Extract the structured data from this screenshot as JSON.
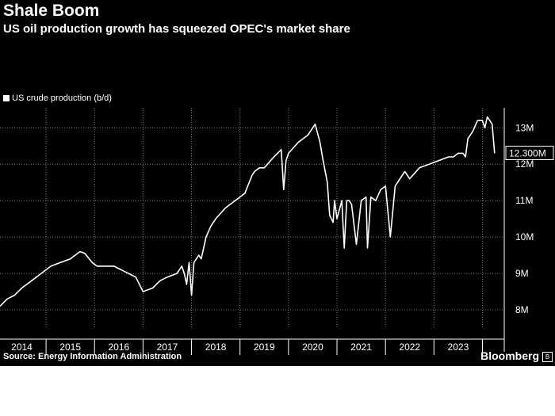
{
  "title": "Shale Boom",
  "subtitle": "US oil production growth has squeezed OPEC's market share",
  "source": "Source: Energy Information Administration",
  "brand": "Bloomberg",
  "colors": {
    "background": "#000000",
    "line": "#ffffff",
    "grid": "#808080"
  },
  "chart_data": {
    "type": "line",
    "title": "Shale Boom",
    "subtitle": "US oil production growth has squeezed OPEC's market share",
    "xlabel": "",
    "ylabel": "",
    "xlim": [
      2013.55,
      2023.95
    ],
    "ylim": [
      7.5,
      13.55
    ],
    "x_ticks": [
      2014,
      2015,
      2016,
      2017,
      2018,
      2019,
      2020,
      2021,
      2022,
      2023
    ],
    "y_ticks": [
      8,
      9,
      10,
      11,
      12,
      13
    ],
    "y_tick_labels": [
      "8M",
      "9M",
      "10M",
      "11M",
      "12M",
      "13M"
    ],
    "grid": "dotted, both axes",
    "legend": "top-left",
    "series": [
      {
        "name": "US crude production (b/d)",
        "end_label": "12.300M",
        "x": [
          2013.55,
          2013.7,
          2013.85,
          2014.0,
          2014.2,
          2014.4,
          2014.6,
          2014.8,
          2015.0,
          2015.2,
          2015.3,
          2015.45,
          2015.55,
          2015.7,
          2015.9,
          2016.05,
          2016.2,
          2016.35,
          2016.5,
          2016.6,
          2016.7,
          2016.85,
          2017.0,
          2017.2,
          2017.3,
          2017.35,
          2017.4,
          2017.45,
          2017.5,
          2017.55,
          2017.6,
          2017.65,
          2017.7,
          2017.8,
          2017.9,
          2018.0,
          2018.2,
          2018.4,
          2018.6,
          2018.75,
          2018.8,
          2018.9,
          2019.0,
          2019.2,
          2019.35,
          2019.4,
          2019.45,
          2019.5,
          2019.7,
          2019.9,
          2020.05,
          2020.15,
          2020.2,
          2020.3,
          2020.35,
          2020.42,
          2020.45,
          2020.5,
          2020.6,
          2020.65,
          2020.7,
          2020.75,
          2020.8,
          2020.9,
          2021.0,
          2021.1,
          2021.13,
          2021.2,
          2021.3,
          2021.4,
          2021.5,
          2021.6,
          2021.7,
          2021.8,
          2021.9,
          2022.0,
          2022.2,
          2022.4,
          2022.6,
          2022.8,
          2022.9,
          2023.0,
          2023.1,
          2023.15,
          2023.2,
          2023.3,
          2023.4,
          2023.5,
          2023.55,
          2023.6,
          2023.65,
          2023.7,
          2023.75
        ],
        "y": [
          8.1,
          8.3,
          8.4,
          8.6,
          8.8,
          9.0,
          9.2,
          9.3,
          9.4,
          9.6,
          9.55,
          9.3,
          9.2,
          9.2,
          9.2,
          9.1,
          9.0,
          8.9,
          8.5,
          8.55,
          8.6,
          8.8,
          8.9,
          9.0,
          9.2,
          9.0,
          8.7,
          9.3,
          8.4,
          9.3,
          9.4,
          9.5,
          9.4,
          10.0,
          10.3,
          10.5,
          10.8,
          11.0,
          11.2,
          11.7,
          11.8,
          11.9,
          11.9,
          12.2,
          12.4,
          11.3,
          12.1,
          12.3,
          12.6,
          12.8,
          13.1,
          12.6,
          12.2,
          11.5,
          10.6,
          10.4,
          11.0,
          10.5,
          11.0,
          9.7,
          11.0,
          11.0,
          10.9,
          9.8,
          11.0,
          11.1,
          9.7,
          11.1,
          11.0,
          11.3,
          11.4,
          10.0,
          11.4,
          11.6,
          11.8,
          11.6,
          11.9,
          12.0,
          12.1,
          12.2,
          12.2,
          12.3,
          12.3,
          12.2,
          12.7,
          12.9,
          13.2,
          13.2,
          13.0,
          13.3,
          13.2,
          13.1,
          12.3
        ]
      }
    ]
  }
}
